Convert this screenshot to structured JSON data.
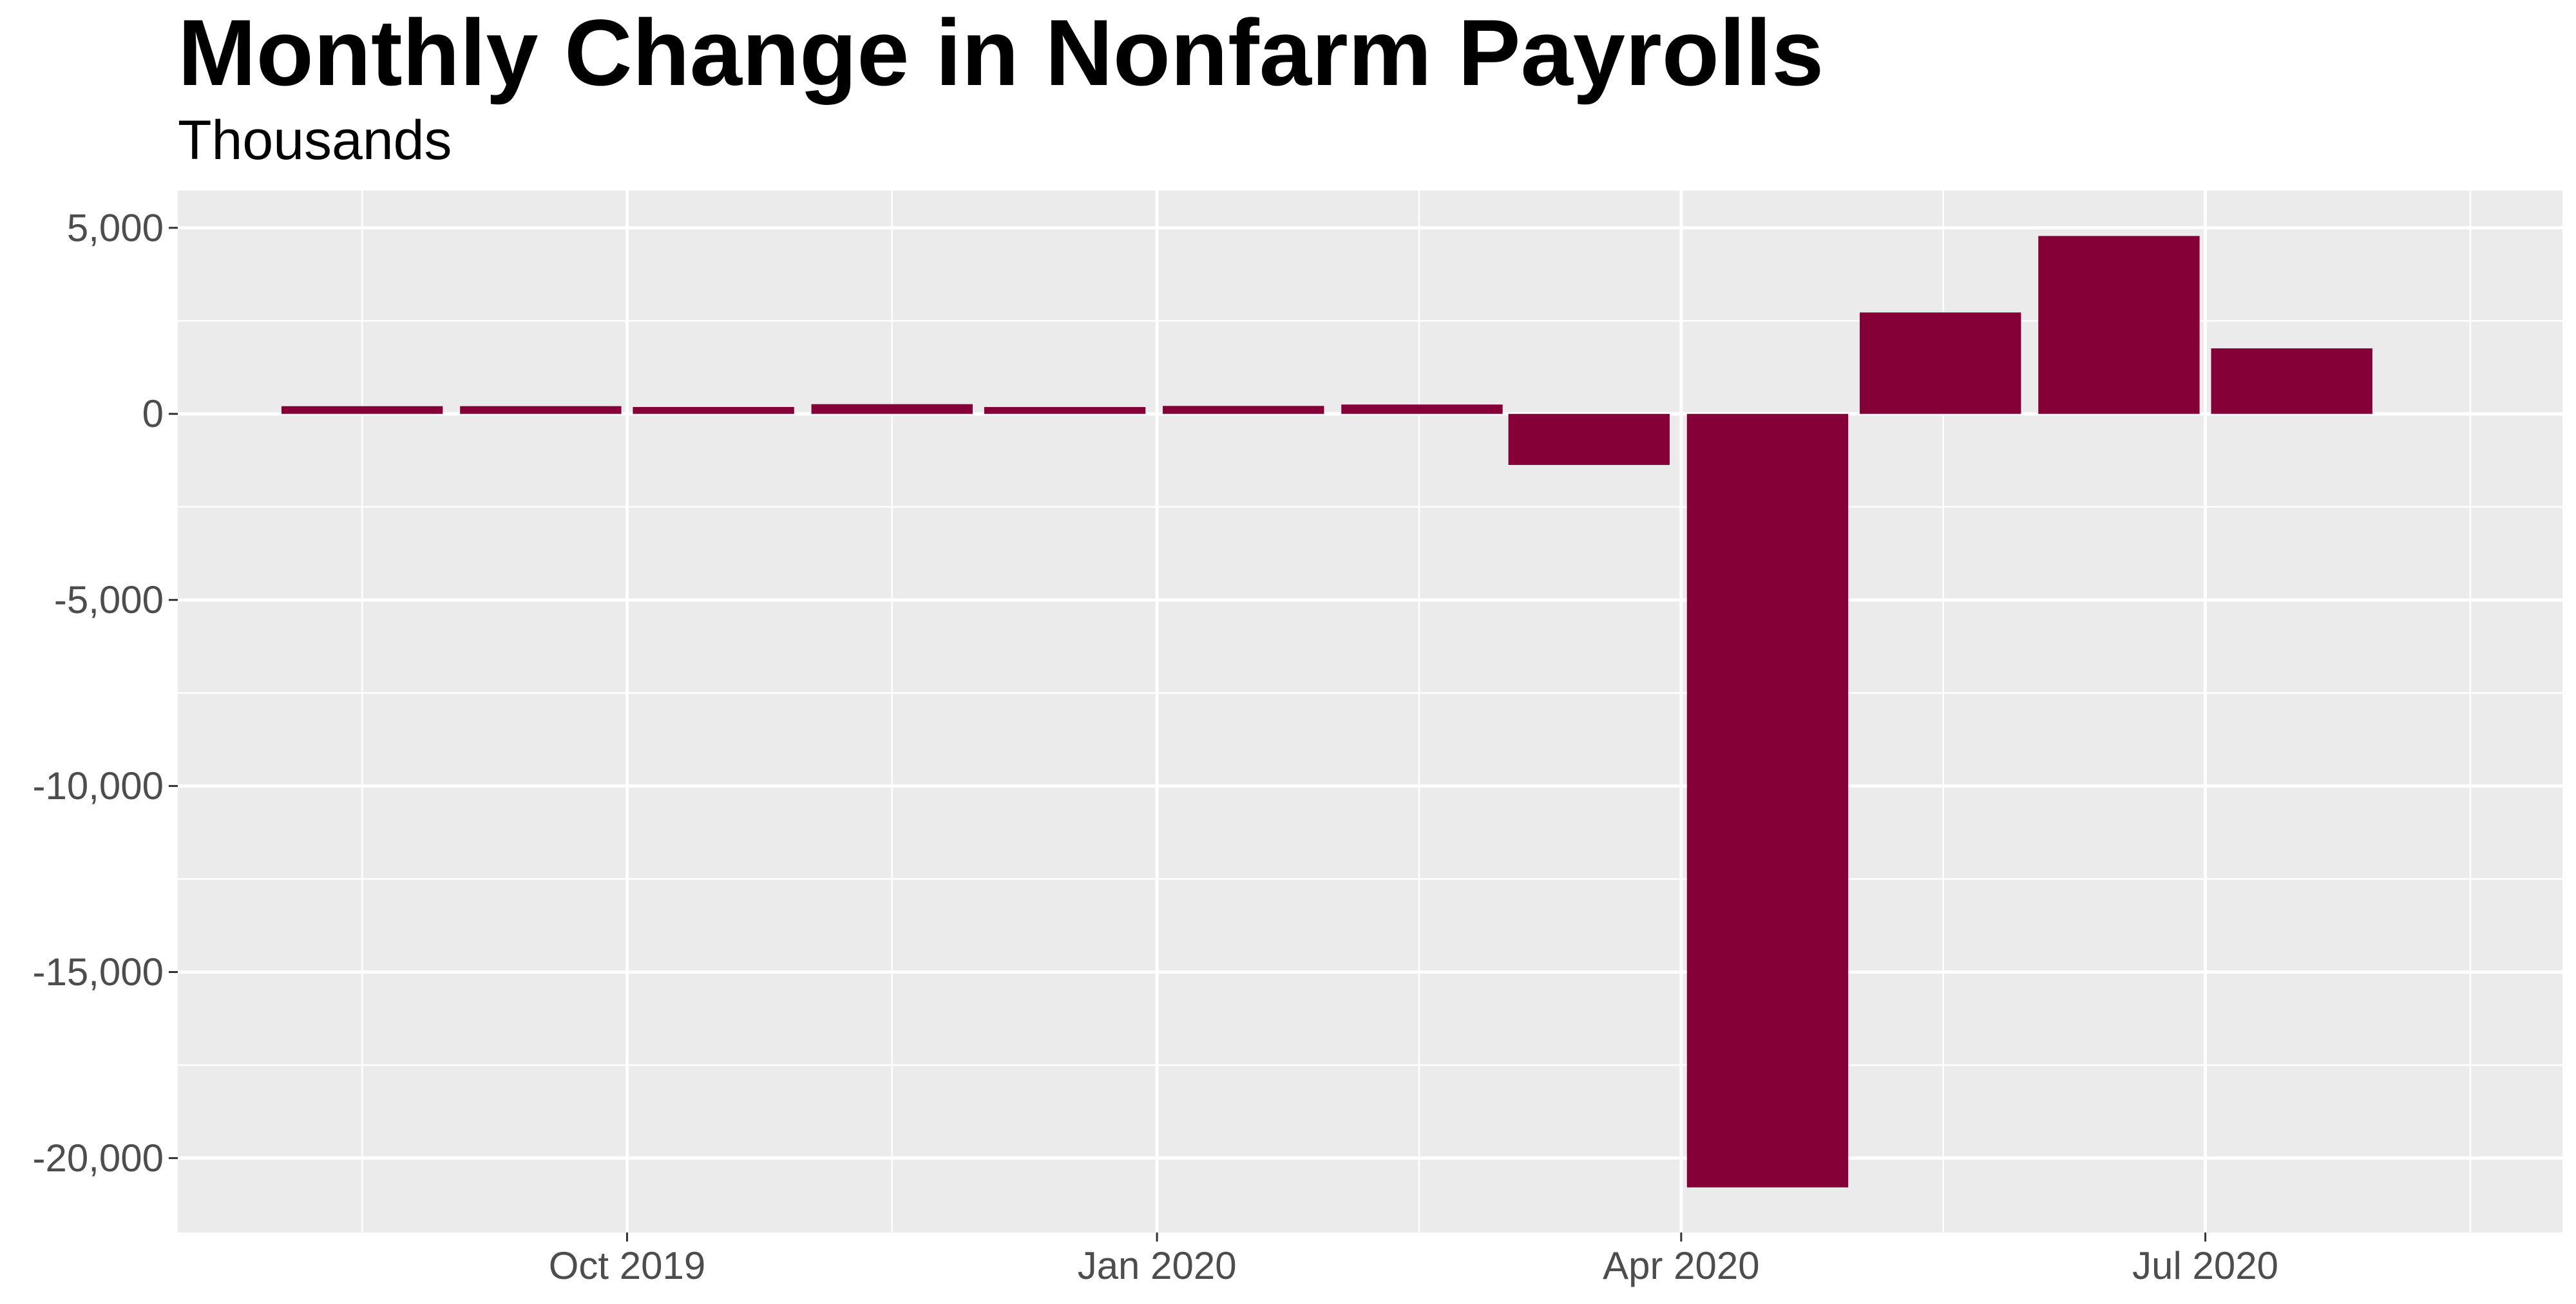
{
  "chart_data": {
    "type": "bar",
    "title": "Monthly Change in Nonfarm Payrolls",
    "subtitle": "Thousands",
    "xlabel": "",
    "ylabel": "",
    "categories": [
      "Aug 2019",
      "Sep 2019",
      "Oct 2019",
      "Nov 2019",
      "Dec 2019",
      "Jan 2020",
      "Feb 2020",
      "Mar 2020",
      "Apr 2020",
      "May 2020",
      "Jun 2020",
      "Jul 2020",
      "Aug 2020"
    ],
    "x": [
      "2019-08-01",
      "2019-09-01",
      "2019-10-01",
      "2019-11-01",
      "2019-12-01",
      "2020-01-01",
      "2020-02-01",
      "2020-03-01",
      "2020-04-01",
      "2020-05-01",
      "2020-06-01",
      "2020-07-01",
      "2020-08-01"
    ],
    "values": [
      207,
      208,
      185,
      261,
      184,
      214,
      251,
      -1373,
      -20787,
      2725,
      4781,
      1761,
      null
    ],
    "ylim": [
      -22000,
      6000
    ],
    "xlim": [
      "2019-07-15",
      "2020-09-01"
    ],
    "y_ticks": [
      5000,
      0,
      -5000,
      -10000,
      -15000,
      -20000
    ],
    "y_tick_labels": [
      "5,000",
      "0",
      "-5,000",
      "-10,000",
      "-15,000",
      "-20,000"
    ],
    "x_ticks": [
      "2019-10-01",
      "2020-01-01",
      "2020-04-01",
      "2020-07-01"
    ],
    "x_tick_labels": [
      "Oct 2019",
      "Jan 2020",
      "Apr 2020",
      "Jul 2020"
    ],
    "grid": true,
    "legend": "none",
    "colors": {
      "bar": "#840037",
      "panel": "#ebebeb",
      "grid": "#ffffff",
      "tick_text": "#4d4d4d"
    }
  }
}
